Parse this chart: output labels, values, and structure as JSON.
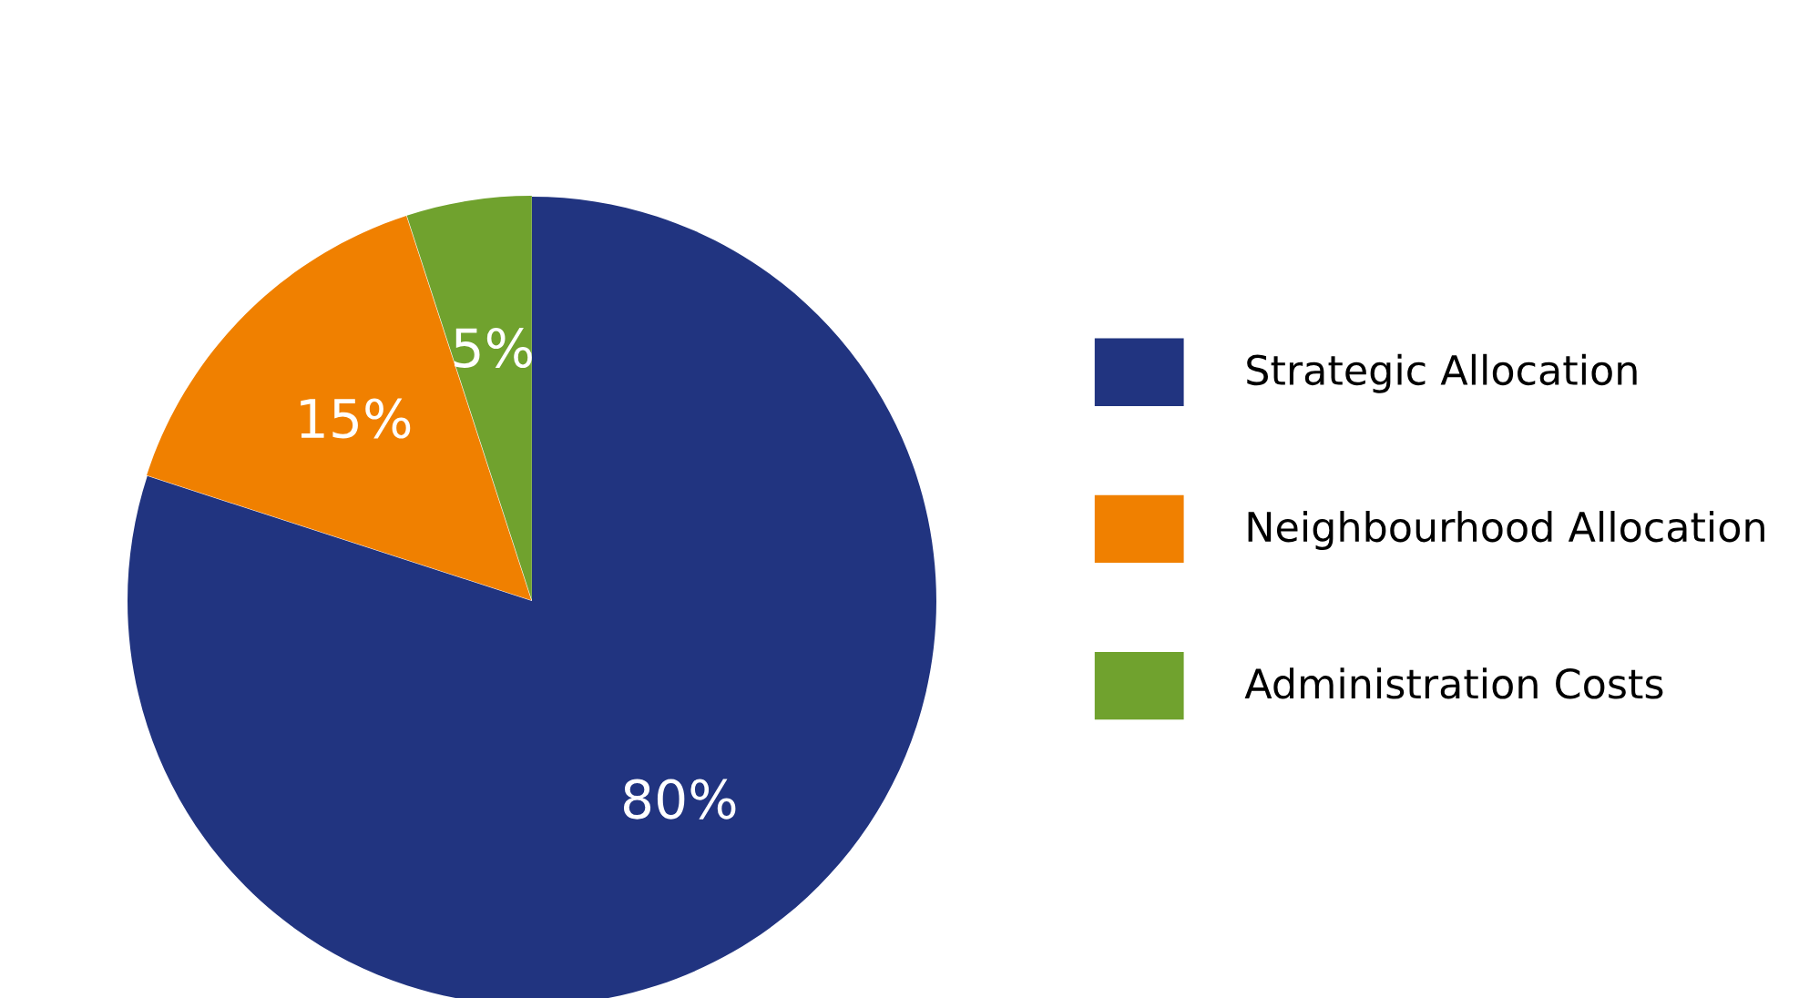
{
  "chart_data": {
    "type": "pie",
    "categories": [
      "Strategic Allocation",
      "Neighbourhood Allocation",
      "Administration Costs"
    ],
    "values": [
      80,
      15,
      5
    ],
    "colors": [
      "#213480",
      "#f08000",
      "#70a22e"
    ],
    "value_labels": [
      "80%",
      "15%",
      "5%"
    ],
    "legend": "right"
  }
}
